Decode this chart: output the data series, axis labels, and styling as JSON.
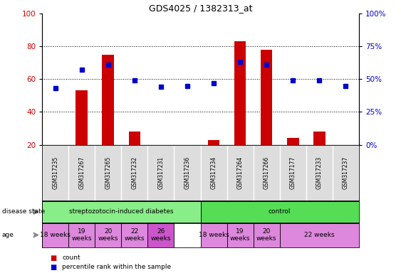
{
  "title": "GDS4025 / 1382313_at",
  "samples": [
    "GSM317235",
    "GSM317267",
    "GSM317265",
    "GSM317232",
    "GSM317231",
    "GSM317236",
    "GSM317234",
    "GSM317264",
    "GSM317266",
    "GSM317177",
    "GSM317233",
    "GSM317237"
  ],
  "count_values": [
    20,
    53,
    75,
    28,
    20,
    20,
    23,
    83,
    78,
    24,
    28,
    20
  ],
  "percentile_values": [
    43,
    57,
    61,
    49,
    44,
    45,
    47,
    63,
    61,
    49,
    49,
    45
  ],
  "ylim_left": [
    20,
    100
  ],
  "ylim_right": [
    0,
    100
  ],
  "yticks_left": [
    20,
    40,
    60,
    80,
    100
  ],
  "yticks_right": [
    0,
    25,
    50,
    75,
    100
  ],
  "bar_color": "#cc0000",
  "scatter_color": "#0000cc",
  "disease_state_groups": [
    {
      "label": "streptozotocin-induced diabetes",
      "start": 0,
      "end": 6,
      "color": "#88ee88"
    },
    {
      "label": "control",
      "start": 6,
      "end": 12,
      "color": "#55dd55"
    }
  ],
  "age_groups": [
    {
      "label": "18 weeks",
      "start": 0,
      "end": 1,
      "color": "#dd88dd"
    },
    {
      "label": "19\nweeks",
      "start": 1,
      "end": 2,
      "color": "#dd88dd"
    },
    {
      "label": "20\nweeks",
      "start": 2,
      "end": 3,
      "color": "#dd88dd"
    },
    {
      "label": "22\nweeks",
      "start": 3,
      "end": 4,
      "color": "#dd88dd"
    },
    {
      "label": "26\nweeks",
      "start": 4,
      "end": 5,
      "color": "#cc55cc"
    },
    {
      "label": "18 weeks",
      "start": 6,
      "end": 7,
      "color": "#dd88dd"
    },
    {
      "label": "19\nweeks",
      "start": 7,
      "end": 8,
      "color": "#dd88dd"
    },
    {
      "label": "20\nweeks",
      "start": 8,
      "end": 9,
      "color": "#dd88dd"
    },
    {
      "label": "22 weeks",
      "start": 9,
      "end": 12,
      "color": "#dd88dd"
    }
  ],
  "background_color": "#ffffff",
  "label_color_left": "#cc0000",
  "label_color_right": "#0000cc",
  "gridline_yticks": [
    40,
    60,
    80
  ]
}
